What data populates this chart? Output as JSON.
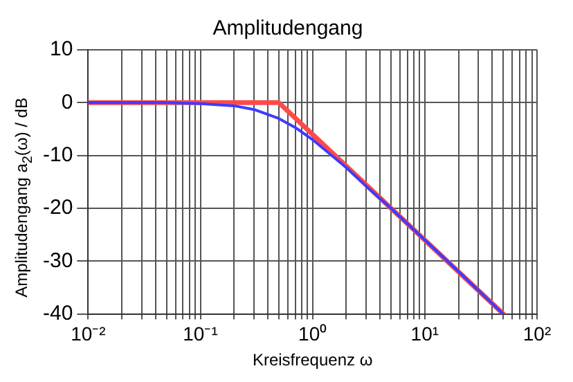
{
  "chart_data": {
    "type": "line",
    "title": "Amplitudengang",
    "xlabel": "Kreisfrequenz ω",
    "ylabel": "Amplitudengang a$_{2}$(ω) / dB",
    "log": "x",
    "grid": true,
    "legend": false,
    "marker": "none",
    "line_style": "solid",
    "xlim": [
      0.01,
      100
    ],
    "ylim": [
      -40,
      10
    ],
    "xticks": [
      {
        "value": 0.01,
        "label": "10⁻²"
      },
      {
        "value": 0.02,
        "label": null
      },
      {
        "value": 0.03,
        "label": null
      },
      {
        "value": 0.04,
        "label": null
      },
      {
        "value": 0.05,
        "label": null
      },
      {
        "value": 0.06,
        "label": null
      },
      {
        "value": 0.07,
        "label": null
      },
      {
        "value": 0.08,
        "label": null
      },
      {
        "value": 0.09,
        "label": null
      },
      {
        "value": 0.1,
        "label": "10⁻¹"
      },
      {
        "value": 0.2,
        "label": null
      },
      {
        "value": 0.3,
        "label": null
      },
      {
        "value": 0.4,
        "label": null
      },
      {
        "value": 0.5,
        "label": null
      },
      {
        "value": 0.6,
        "label": null
      },
      {
        "value": 0.7,
        "label": null
      },
      {
        "value": 0.8,
        "label": null
      },
      {
        "value": 0.9,
        "label": null
      },
      {
        "value": 1,
        "label": "10⁰"
      },
      {
        "value": 2,
        "label": null
      },
      {
        "value": 3,
        "label": null
      },
      {
        "value": 4,
        "label": null
      },
      {
        "value": 5,
        "label": null
      },
      {
        "value": 6,
        "label": null
      },
      {
        "value": 7,
        "label": null
      },
      {
        "value": 8,
        "label": null
      },
      {
        "value": 9,
        "label": null
      },
      {
        "value": 10,
        "label": "10¹"
      },
      {
        "value": 20,
        "label": null
      },
      {
        "value": 30,
        "label": null
      },
      {
        "value": 40,
        "label": null
      },
      {
        "value": 50,
        "label": null
      },
      {
        "value": 60,
        "label": null
      },
      {
        "value": 70,
        "label": null
      },
      {
        "value": 80,
        "label": null
      },
      {
        "value": 90,
        "label": null
      },
      {
        "value": 100,
        "label": "10²"
      }
    ],
    "yticks": [
      -40,
      -30,
      -20,
      -10,
      0,
      10
    ],
    "series": [
      {
        "color": "#3c3cff",
        "x": [
          0.01,
          0.02,
          0.05,
          0.1,
          0.2,
          0.3,
          0.5,
          0.7,
          1,
          2,
          3,
          5,
          10,
          20,
          50
        ],
        "values": [
          0,
          0,
          0,
          -0.2,
          -0.6,
          -1.3,
          -3,
          -4.7,
          -7,
          -12.3,
          -15.8,
          -20,
          -26,
          -32,
          -40
        ]
      },
      {
        "color": "#ff4a4a",
        "x": [
          0.01,
          0.5,
          50
        ],
        "values": [
          0,
          0,
          -40
        ]
      }
    ]
  }
}
